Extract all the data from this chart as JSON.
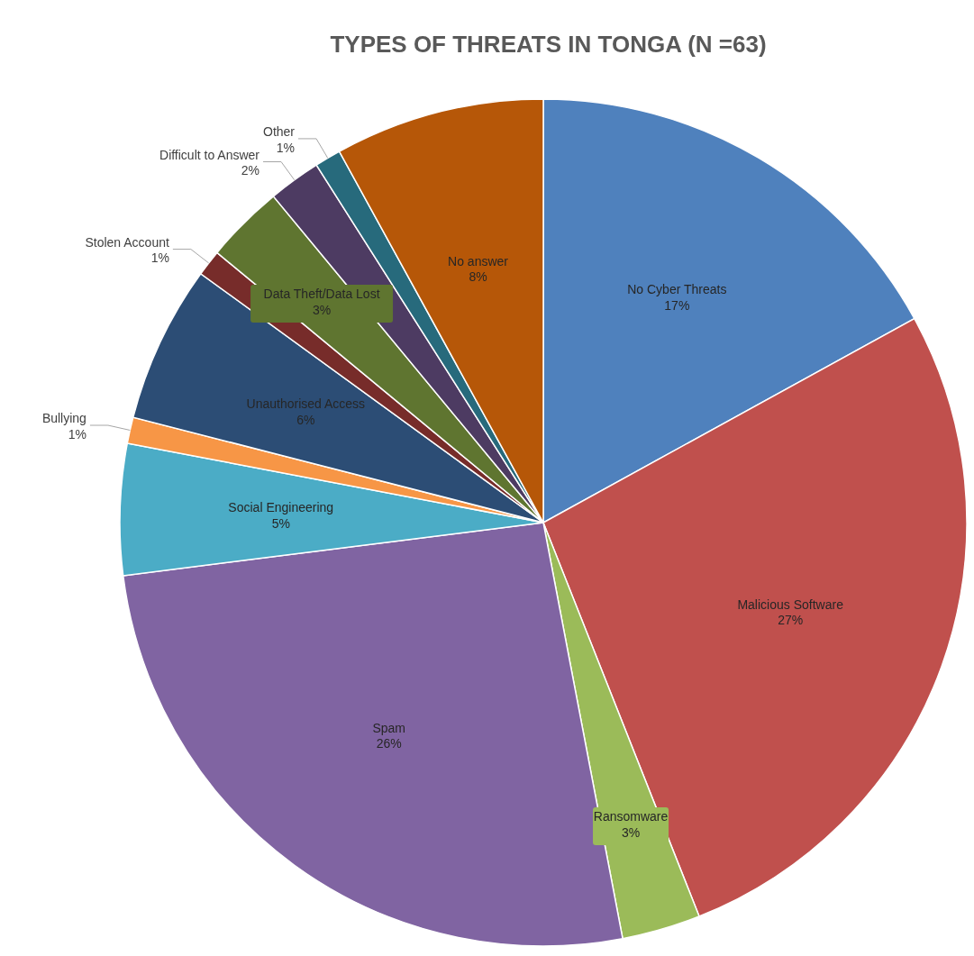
{
  "chart_data": {
    "type": "pie",
    "title": "TYPES OF THREATS IN TONGA (N =63)",
    "categories": [
      "No Cyber Threats",
      "Malicious Software",
      "Ransomware",
      "Spam",
      "Social Engineering",
      "Bullying",
      "Unauthorised Access",
      "Stolen Account",
      "Data Theft/Data Lost",
      "Difficult to Answer",
      "Other",
      "No answer"
    ],
    "values": [
      17,
      27,
      3,
      26,
      5,
      1,
      6,
      1,
      3,
      2,
      1,
      8
    ],
    "value_labels": [
      "17%",
      "27%",
      "3%",
      "26%",
      "5%",
      "1%",
      "6%",
      "1%",
      "3%",
      "2%",
      "1%",
      "8%"
    ],
    "colors": [
      "#4f81bd",
      "#c0504d",
      "#9bbb59",
      "#8064a2",
      "#4bacc6",
      "#f79646",
      "#2c4d75",
      "#772c2a",
      "#5f7530",
      "#4d3b62",
      "#276a7c",
      "#b65708"
    ]
  }
}
